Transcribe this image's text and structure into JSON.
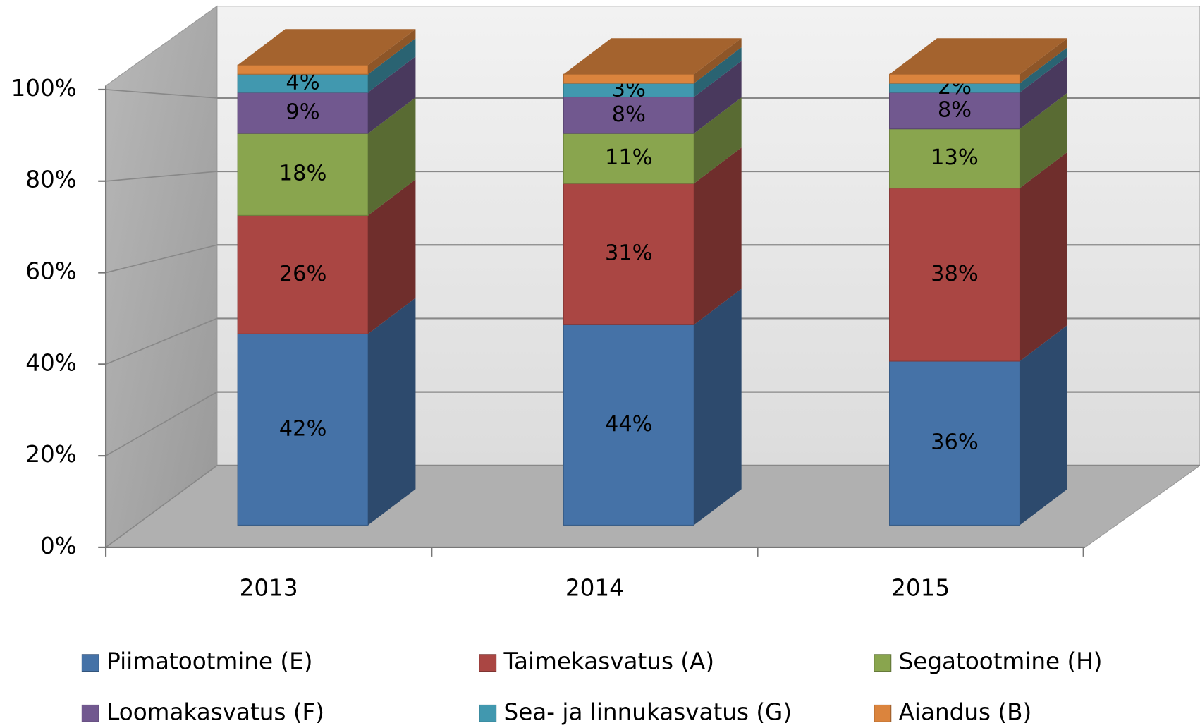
{
  "chart_data": {
    "type": "bar3d_stacked",
    "categories": [
      "2013",
      "2014",
      "2015"
    ],
    "series": [
      {
        "name": "Piimatootmine (E)",
        "color": "#4572a7",
        "values": [
          42,
          44,
          36
        ],
        "value_labels": [
          "42%",
          "44%",
          "36%"
        ]
      },
      {
        "name": "Taimekasvatus (A)",
        "color": "#aa4643",
        "values": [
          26,
          31,
          38
        ],
        "value_labels": [
          "26%",
          "31%",
          "38%"
        ]
      },
      {
        "name": "Segatootmine (H)",
        "color": "#89a54e",
        "values": [
          18,
          11,
          13
        ],
        "value_labels": [
          "18%",
          "11%",
          "13%"
        ]
      },
      {
        "name": "Loomakasvatus (F)",
        "color": "#71588f",
        "values": [
          9,
          8,
          8
        ],
        "value_labels": [
          "9%",
          "8%",
          "8%"
        ]
      },
      {
        "name": "Sea- ja linnukasvatus (G)",
        "color": "#4198af",
        "values": [
          4,
          3,
          2
        ],
        "value_labels": [
          "4%",
          "3%",
          "2%"
        ]
      },
      {
        "name": "Aiandus (B)",
        "color": "#db843d",
        "values": [
          2,
          2,
          2
        ]
      }
    ],
    "ylim": [
      0,
      100
    ],
    "yticks": [
      {
        "value": 0,
        "label": "0%"
      },
      {
        "value": 20,
        "label": "20%"
      },
      {
        "value": 40,
        "label": "40%"
      },
      {
        "value": 60,
        "label": "60%"
      },
      {
        "value": 80,
        "label": "80%"
      },
      {
        "value": 100,
        "label": "100%"
      }
    ],
    "grid": true
  }
}
